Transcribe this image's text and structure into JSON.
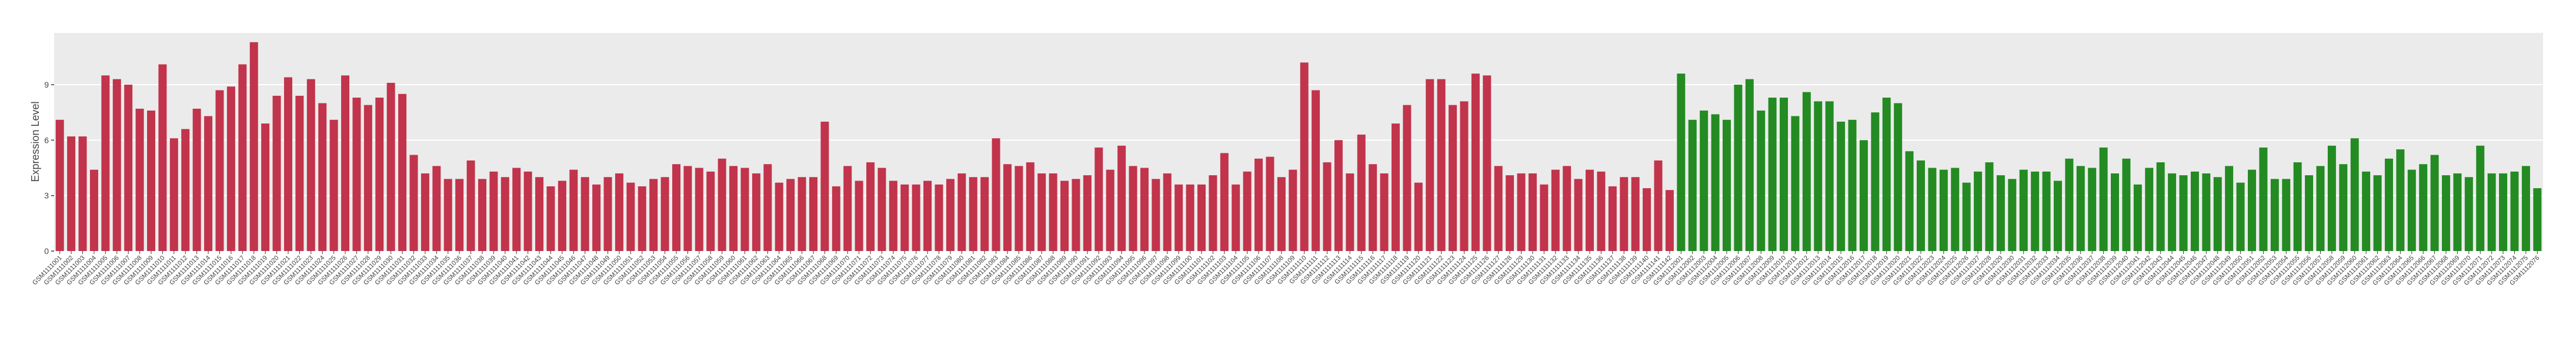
{
  "chart_data": {
    "type": "bar",
    "y_label": "Expression Level",
    "ylim": [
      0,
      11.8
    ],
    "yticks": [
      0,
      3,
      6,
      9
    ],
    "grid": true,
    "series": [
      {
        "color": "#c1344b",
        "categories": [
          "GSM1111001",
          "GSM1111002",
          "GSM1111003",
          "GSM1111004",
          "GSM1111005",
          "GSM1111006",
          "GSM1111007",
          "GSM1111008",
          "GSM1111009",
          "GSM1111010",
          "GSM1111011",
          "GSM1111012",
          "GSM1111013",
          "GSM1111014",
          "GSM1111015",
          "GSM1111016",
          "GSM1111017",
          "GSM1111018",
          "GSM1111019",
          "GSM1111020",
          "GSM1111021",
          "GSM1111022",
          "GSM1111023",
          "GSM1111024",
          "GSM1111025",
          "GSM1111026",
          "GSM1111027",
          "GSM1111028",
          "GSM1111029",
          "GSM1111030",
          "GSM1111031",
          "GSM1111032",
          "GSM1111033",
          "GSM1111034",
          "GSM1111035",
          "GSM1111036",
          "GSM1111037",
          "GSM1111038",
          "GSM1111039",
          "GSM1111040",
          "GSM1111041",
          "GSM1111042",
          "GSM1111043",
          "GSM1111044",
          "GSM1111045",
          "GSM1111046",
          "GSM1111047",
          "GSM1111048",
          "GSM1111049",
          "GSM1111050",
          "GSM1111051",
          "GSM1111052",
          "GSM1111053",
          "GSM1111054",
          "GSM1111055",
          "GSM1111056",
          "GSM1111057",
          "GSM1111058",
          "GSM1111059",
          "GSM1111060",
          "GSM1111061",
          "GSM1111062",
          "GSM1111063",
          "GSM1111064",
          "GSM1111065",
          "GSM1111066",
          "GSM1111067",
          "GSM1111068",
          "GSM1111069",
          "GSM1111070",
          "GSM1111071",
          "GSM1111072",
          "GSM1111073",
          "GSM1111074",
          "GSM1111075",
          "GSM1111076",
          "GSM1111077",
          "GSM1111078",
          "GSM1111079",
          "GSM1111080",
          "GSM1111081",
          "GSM1111082",
          "GSM1111083",
          "GSM1111084",
          "GSM1111085",
          "GSM1111086",
          "GSM1111087",
          "GSM1111088",
          "GSM1111089",
          "GSM1111090",
          "GSM1111091",
          "GSM1111092",
          "GSM1111093",
          "GSM1111094",
          "GSM1111095",
          "GSM1111096",
          "GSM1111097",
          "GSM1111098",
          "GSM1111099",
          "GSM1111100",
          "GSM1111101",
          "GSM1111102",
          "GSM1111103",
          "GSM1111104",
          "GSM1111105",
          "GSM1111106",
          "GSM1111107",
          "GSM1111108",
          "GSM1111109",
          "GSM1111110",
          "GSM1111111",
          "GSM1111112",
          "GSM1111113",
          "GSM1111114",
          "GSM1111115",
          "GSM1111116",
          "GSM1111117",
          "GSM1111118",
          "GSM1111119",
          "GSM1111120",
          "GSM1111121",
          "GSM1111122",
          "GSM1111123",
          "GSM1111124",
          "GSM1111125",
          "GSM1111126",
          "GSM1111127",
          "GSM1111128",
          "GSM1111129",
          "GSM1111130",
          "GSM1111131",
          "GSM1111132",
          "GSM1111133",
          "GSM1111134",
          "GSM1111135",
          "GSM1111136",
          "GSM1111137",
          "GSM1111138",
          "GSM1111139",
          "GSM1111140",
          "GSM1111141",
          "GSM1111142"
        ],
        "values": [
          7.1,
          6.2,
          6.2,
          4.4,
          9.5,
          9.3,
          9.0,
          7.7,
          7.6,
          10.1,
          6.1,
          6.6,
          7.7,
          7.3,
          8.7,
          8.9,
          10.1,
          11.3,
          6.9,
          8.4,
          9.4,
          8.4,
          9.3,
          8.0,
          7.1,
          9.5,
          8.3,
          7.9,
          8.3,
          9.1,
          8.5,
          5.2,
          4.2,
          4.6,
          3.9,
          3.9,
          4.9,
          3.9,
          4.3,
          4.0,
          4.5,
          4.3,
          4.0,
          3.5,
          3.8,
          4.4,
          4.0,
          3.6,
          4.0,
          4.2,
          3.7,
          3.5,
          3.9,
          4.0,
          4.7,
          4.6,
          4.5,
          4.3,
          5.0,
          4.6,
          4.5,
          4.2,
          4.7,
          3.7,
          3.9,
          4.0,
          4.0,
          7.0,
          3.5,
          4.6,
          3.8,
          4.8,
          4.5,
          3.8,
          3.6,
          3.6,
          3.8,
          3.6,
          3.9,
          4.2,
          4.0,
          4.0,
          6.1,
          4.7,
          4.6,
          4.8,
          4.2,
          4.2,
          3.8,
          3.9,
          4.1,
          5.6,
          4.4,
          5.7,
          4.6,
          4.5,
          3.9,
          4.2,
          3.6,
          3.6,
          3.6,
          4.1,
          5.3,
          3.6,
          4.3,
          5.0,
          5.1,
          4.0,
          4.4,
          10.2,
          8.7,
          4.8,
          6.0,
          4.2,
          6.3,
          4.7,
          4.2,
          6.9,
          7.9,
          3.7,
          9.3,
          9.3,
          7.9,
          8.1,
          9.6,
          9.5,
          4.6,
          4.1,
          4.2,
          4.2,
          3.6,
          4.4,
          4.6,
          3.9,
          4.4,
          4.3,
          3.5,
          4.0,
          4.0,
          3.4,
          4.9,
          3.3
        ]
      },
      {
        "color": "#238b22",
        "categories": [
          "GSM1112001",
          "GSM1112002",
          "GSM1112003",
          "GSM1112004",
          "GSM1112005",
          "GSM1112006",
          "GSM1112007",
          "GSM1112008",
          "GSM1112009",
          "GSM1112010",
          "GSM1112011",
          "GSM1112012",
          "GSM1112013",
          "GSM1112014",
          "GSM1112015",
          "GSM1112016",
          "GSM1112017",
          "GSM1112018",
          "GSM1112019",
          "GSM1112020",
          "GSM1112021",
          "GSM1112022",
          "GSM1112023",
          "GSM1112024",
          "GSM1112025",
          "GSM1112026",
          "GSM1112027",
          "GSM1112028",
          "GSM1112029",
          "GSM1112030",
          "GSM1112031",
          "GSM1112032",
          "GSM1112033",
          "GSM1112034",
          "GSM1112035",
          "GSM1112036",
          "GSM1112037",
          "GSM1112038",
          "GSM1112039",
          "GSM1112040",
          "GSM1112041",
          "GSM1112042",
          "GSM1112043",
          "GSM1112044",
          "GSM1112045",
          "GSM1112046",
          "GSM1112047",
          "GSM1112048",
          "GSM1112049",
          "GSM1112050",
          "GSM1112051",
          "GSM1112052",
          "GSM1112053",
          "GSM1112054",
          "GSM1112055",
          "GSM1112056",
          "GSM1112057",
          "GSM1112058",
          "GSM1112059",
          "GSM1112060",
          "GSM1112061",
          "GSM1112062",
          "GSM1112063",
          "GSM1112064",
          "GSM1112065",
          "GSM1112066",
          "GSM1112067",
          "GSM1112068",
          "GSM1112069",
          "GSM1112070",
          "GSM1112071",
          "GSM1112072",
          "GSM1112073",
          "GSM1112074",
          "GSM1112075",
          "GSM1112076"
        ],
        "values": [
          9.6,
          7.1,
          7.6,
          7.4,
          7.1,
          9.0,
          9.3,
          7.6,
          8.3,
          8.3,
          7.3,
          8.6,
          8.1,
          8.1,
          7.0,
          7.1,
          6.0,
          7.5,
          8.3,
          8.0,
          5.4,
          4.9,
          4.5,
          4.4,
          4.5,
          3.7,
          4.3,
          4.8,
          4.1,
          3.9,
          4.4,
          4.3,
          4.3,
          3.8,
          5.0,
          4.6,
          4.5,
          5.6,
          4.2,
          5.0,
          3.6,
          4.5,
          4.8,
          4.2,
          4.1,
          4.3,
          4.2,
          4.0,
          4.6,
          3.7,
          4.4,
          5.6,
          3.9,
          3.9,
          4.8,
          4.1,
          4.6,
          5.7,
          4.7,
          6.1,
          4.3,
          4.1,
          5.0,
          5.5,
          4.4,
          4.7,
          5.2,
          4.1,
          4.2,
          4.0,
          5.7,
          4.2,
          4.2,
          4.3,
          4.6,
          3.4
        ]
      }
    ]
  }
}
